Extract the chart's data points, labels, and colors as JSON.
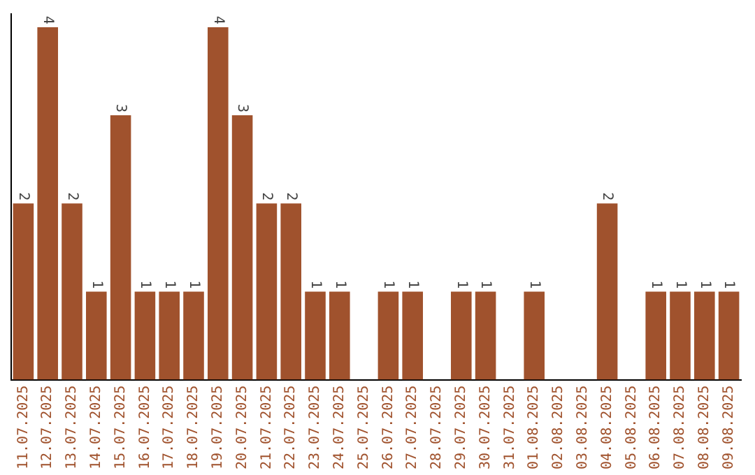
{
  "chart_data": {
    "type": "bar",
    "categories": [
      "11.07.2025",
      "12.07.2025",
      "13.07.2025",
      "14.07.2025",
      "15.07.2025",
      "16.07.2025",
      "17.07.2025",
      "18.07.2025",
      "19.07.2025",
      "20.07.2025",
      "21.07.2025",
      "22.07.2025",
      "23.07.2025",
      "24.07.2025",
      "25.07.2025",
      "26.07.2025",
      "27.07.2025",
      "28.07.2025",
      "29.07.2025",
      "30.07.2025",
      "31.07.2025",
      "01.08.2025",
      "02.08.2025",
      "03.08.2025",
      "04.08.2025",
      "05.08.2025",
      "06.08.2025",
      "07.08.2025",
      "08.08.2025",
      "09.08.2025"
    ],
    "values": [
      2,
      4,
      2,
      1,
      3,
      1,
      1,
      1,
      4,
      3,
      2,
      2,
      1,
      1,
      0,
      1,
      1,
      0,
      1,
      1,
      0,
      1,
      0,
      0,
      2,
      0,
      1,
      1,
      1,
      1
    ],
    "value_labels": [
      "2",
      "4",
      "2",
      "1",
      "3",
      "1",
      "1",
      "1",
      "4",
      "3",
      "2",
      "2",
      "1",
      "1",
      null,
      "1",
      "1",
      null,
      "1",
      "1",
      null,
      "1",
      null,
      null,
      "2",
      null,
      "1",
      "1",
      "1",
      "1"
    ],
    "color": "#a0522d",
    "ylim": [
      0,
      4.15
    ],
    "tick_labels": "x",
    "grid": false,
    "legend": false
  }
}
